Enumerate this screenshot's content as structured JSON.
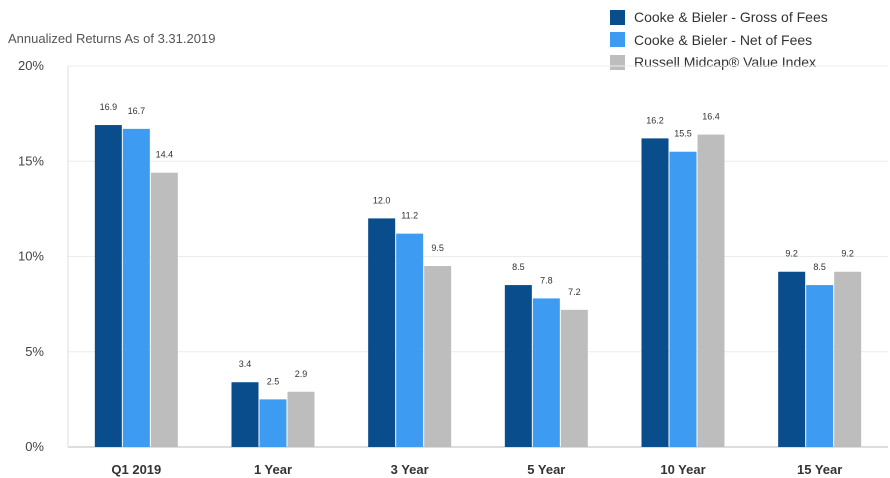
{
  "chart_data": {
    "type": "bar",
    "subtitle": "Annualized Returns As of 3.31.2019",
    "categories": [
      "Q1 2019",
      "1 Year",
      "3 Year",
      "5 Year",
      "10 Year",
      "15 Year"
    ],
    "series": [
      {
        "name": "Cooke & Bieler - Gross of Fees",
        "color": "#0a4d8c",
        "values": [
          16.9,
          3.4,
          12.0,
          8.5,
          16.2,
          9.2
        ]
      },
      {
        "name": "Cooke & Bieler - Net of Fees",
        "color": "#3d9bf2",
        "values": [
          16.7,
          2.5,
          11.2,
          7.8,
          15.5,
          8.5
        ]
      },
      {
        "name": "Russell Midcap® Value Index",
        "color": "#bdbdbd",
        "values": [
          14.4,
          2.9,
          9.5,
          7.2,
          16.4,
          9.2
        ]
      }
    ],
    "ylim": [
      0,
      20
    ],
    "yticks": [
      0,
      5,
      10,
      15,
      20
    ],
    "ytick_labels": [
      "0%",
      "5%",
      "10%",
      "15%",
      "20%"
    ],
    "grid": true,
    "legend_position": "top-right"
  }
}
